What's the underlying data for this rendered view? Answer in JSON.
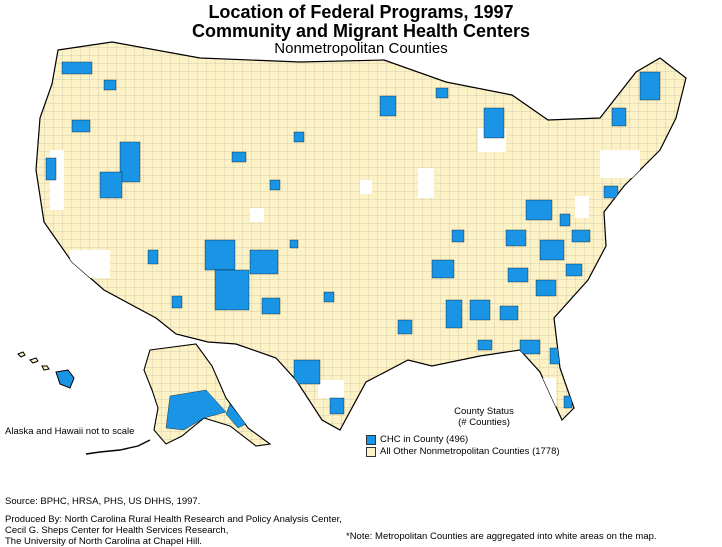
{
  "title_line1": "Location of Federal Programs, 1997",
  "title_line2": "Community and Migrant Health Centers",
  "subtitle": "Nonmetropolitan Counties",
  "scale_note": "Alaska and Hawaii not to scale",
  "legend": {
    "title": "County Status",
    "subtitle": "(# Counties)",
    "items": [
      {
        "label": "CHC in County (496)",
        "color": "#1a95e6"
      },
      {
        "label": "All Other Nonmetropolitan Counties (1778)",
        "color": "#fdf2c6"
      }
    ]
  },
  "source": "Source: BPHC, HRSA, PHS, US DHHS, 1997.",
  "producer": [
    "Produced By:  North Carolina Rural Health Research and Policy Analysis Center,",
    "Cecil G. Sheps Center for Health Services Research,",
    "The University of North Carolina at Chapel Hill."
  ],
  "metro_note": "*Note:  Metropolitan Counties are aggregated into white areas on the map.",
  "colors": {
    "chc": "#1a95e6",
    "other_nonmetro": "#fdf2c6",
    "metro": "#ffffff",
    "border": "#000000"
  }
}
